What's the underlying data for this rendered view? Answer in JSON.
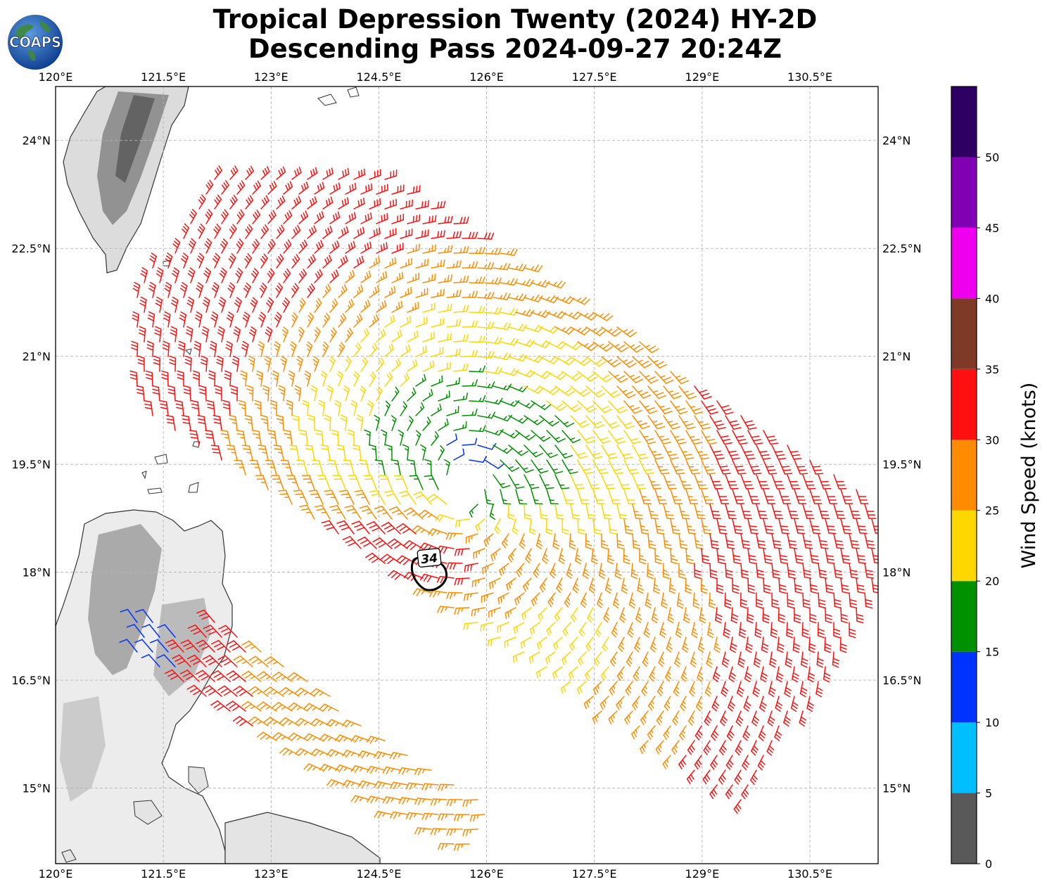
{
  "title": {
    "line1": "Tropical Depression Twenty (2024) HY-2D",
    "line2": "Descending Pass 2024-09-27 20:24Z"
  },
  "logo": {
    "text": "COAPS",
    "icon": "globe-logo-icon"
  },
  "map": {
    "lon_range": [
      120.0,
      131.45
    ],
    "lat_range": [
      13.95,
      24.75
    ],
    "lon_ticks": [
      "120°E",
      "121.5°E",
      "123°E",
      "124.5°E",
      "126°E",
      "127.5°E",
      "129°E",
      "130.5°E"
    ],
    "lat_ticks": [
      "24°N",
      "22.5°N",
      "21°N",
      "19.5°N",
      "18°N",
      "16.5°N",
      "15°N"
    ],
    "gridlines": true,
    "land_colors": [
      "#ffffff",
      "#cfcfcf",
      "#555555"
    ],
    "storm_center": {
      "lon": 125.7,
      "lat": 19.2
    },
    "wind_swath": "HY-2D scatterometer wind barbs",
    "max_wind_label": "34"
  },
  "colorbar": {
    "label": "Wind Speed (knots)",
    "ticks": [
      "0",
      "5",
      "10",
      "15",
      "20",
      "25",
      "30",
      "35",
      "40",
      "45",
      "50"
    ],
    "bins": [
      {
        "range": [
          0,
          5
        ],
        "color": "#595959"
      },
      {
        "range": [
          5,
          10
        ],
        "color": "#00bfff"
      },
      {
        "range": [
          10,
          15
        ],
        "color": "#0033ff"
      },
      {
        "range": [
          15,
          20
        ],
        "color": "#009100"
      },
      {
        "range": [
          20,
          25
        ],
        "color": "#ffd700"
      },
      {
        "range": [
          25,
          30
        ],
        "color": "#ff8c00"
      },
      {
        "range": [
          30,
          35
        ],
        "color": "#ff1010"
      },
      {
        "range": [
          35,
          40
        ],
        "color": "#7f3a27"
      },
      {
        "range": [
          40,
          45
        ],
        "color": "#ee00ee"
      },
      {
        "range": [
          45,
          50
        ],
        "color": "#8200b4"
      },
      {
        "range": [
          50,
          55
        ],
        "color": "#2e0063"
      }
    ]
  }
}
